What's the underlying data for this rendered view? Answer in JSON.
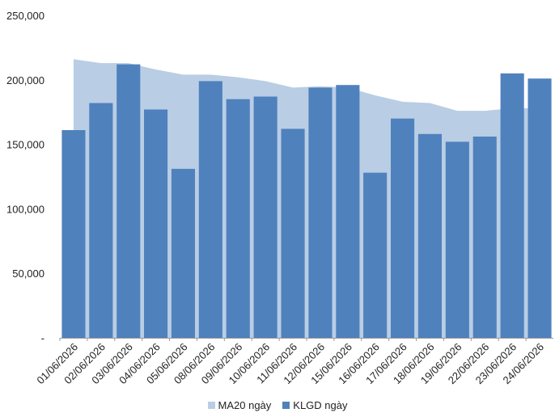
{
  "chart_data": {
    "type": "bar",
    "categories": [
      "01/06/2026",
      "02/06/2026",
      "03/06/2026",
      "04/06/2026",
      "05/06/2026",
      "08/06/2026",
      "09/06/2026",
      "10/06/2026",
      "11/06/2026",
      "12/06/2026",
      "15/06/2026",
      "16/06/2026",
      "17/06/2026",
      "18/06/2026",
      "19/06/2026",
      "22/06/2026",
      "23/06/2026",
      "24/06/2026"
    ],
    "series": [
      {
        "name": "MA20 ngày",
        "type": "area",
        "color": "#b9cde5",
        "values": [
          216000,
          213000,
          213000,
          208000,
          204000,
          204000,
          202000,
          199000,
          194000,
          195000,
          194000,
          188000,
          183000,
          182000,
          176000,
          176000,
          178000,
          178000
        ]
      },
      {
        "name": "KLGD ngày",
        "type": "bar",
        "color": "#4f81bd",
        "values": [
          161000,
          182000,
          212000,
          177000,
          131000,
          199000,
          185000,
          187000,
          162000,
          194000,
          196000,
          128000,
          170000,
          158000,
          152000,
          156000,
          205000,
          201000
        ]
      }
    ],
    "yticks": [
      "-",
      "50,000",
      "100,000",
      "150,000",
      "200,000",
      "250,000"
    ],
    "ylim": [
      0,
      250000
    ],
    "grid": false,
    "legend": "bottom"
  }
}
